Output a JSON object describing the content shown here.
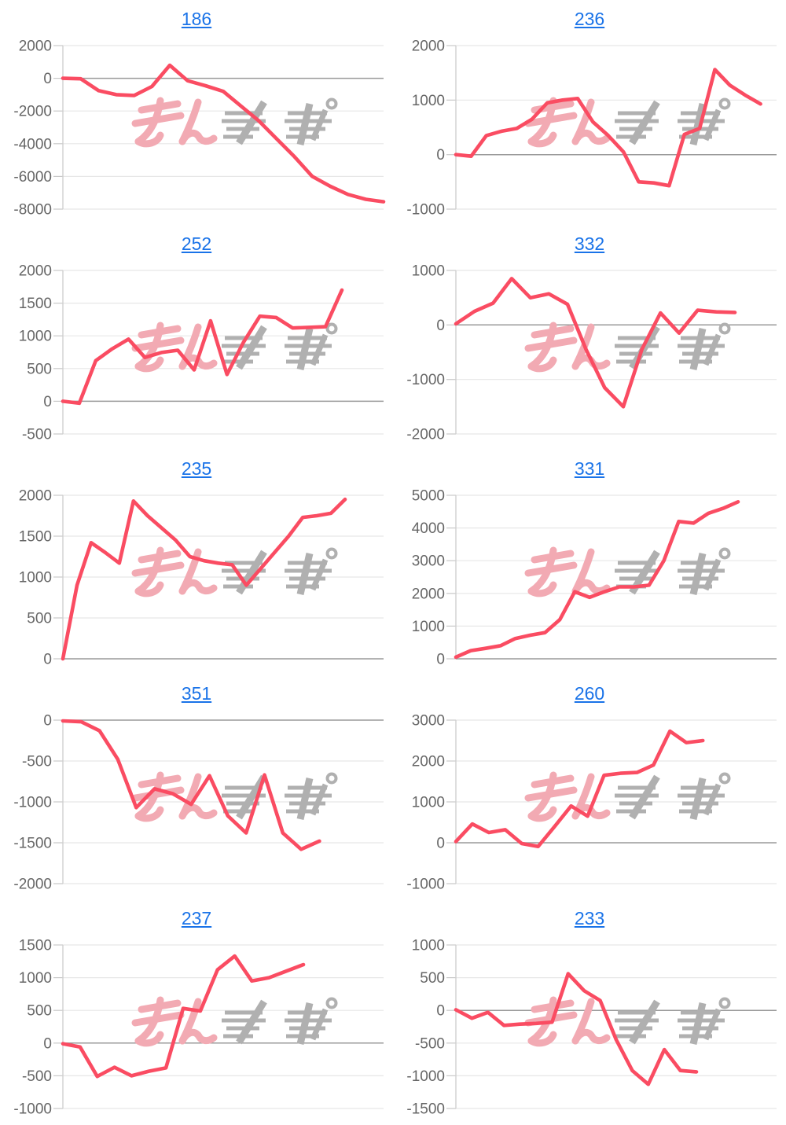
{
  "watermark": {
    "label": "みんレポ"
  },
  "style": {
    "background": "#ffffff",
    "series_color": "#fa4c62",
    "grid_color": "#e7e7e7",
    "zero_line_color": "#9a9a9a",
    "axis_color": "#cfcfcf",
    "tick_color": "#c9c9c9",
    "label_color": "#666666",
    "title_link_color": "#1a73e8",
    "watermark_pink": "#f2aab3",
    "watermark_gray": "#b0b0b0"
  },
  "chart_data": [
    {
      "type": "line",
      "title": "186",
      "y_ticks": [
        2000,
        0,
        -2000,
        -4000,
        -6000,
        -8000
      ],
      "y_max": 2000,
      "y_min": -8000,
      "end_fraction": 1.0,
      "values": [
        0,
        -30,
        -750,
        -1000,
        -1050,
        -500,
        800,
        -150,
        -450,
        -800,
        -1700,
        -2600,
        -3700,
        -4800,
        -6000,
        -6600,
        -7100,
        -7400,
        -7550
      ]
    },
    {
      "type": "line",
      "title": "236",
      "y_ticks": [
        2000,
        1000,
        0,
        -1000
      ],
      "y_max": 2000,
      "y_min": -1000,
      "end_fraction": 0.95,
      "values": [
        0,
        -30,
        350,
        430,
        480,
        650,
        950,
        1000,
        1030,
        600,
        350,
        50,
        -500,
        -520,
        -570,
        370,
        480,
        1560,
        1270,
        1090,
        930
      ]
    },
    {
      "type": "line",
      "title": "252",
      "y_ticks": [
        2000,
        1500,
        1000,
        500,
        0,
        -500
      ],
      "y_max": 2000,
      "y_min": -500,
      "end_fraction": 0.87,
      "values": [
        0,
        -30,
        620,
        800,
        950,
        670,
        745,
        780,
        480,
        1230,
        410,
        900,
        1300,
        1280,
        1120,
        1130,
        1140,
        1700
      ]
    },
    {
      "type": "line",
      "title": "332",
      "y_ticks": [
        1000,
        0,
        -1000,
        -2000
      ],
      "y_max": 1000,
      "y_min": -2000,
      "end_fraction": 0.87,
      "values": [
        20,
        250,
        400,
        850,
        500,
        570,
        380,
        -450,
        -1150,
        -1500,
        -450,
        220,
        -150,
        270,
        240,
        230
      ]
    },
    {
      "type": "line",
      "title": "235",
      "y_ticks": [
        2000,
        1500,
        1000,
        500,
        0
      ],
      "y_max": 2000,
      "y_min": 0,
      "end_fraction": 0.88,
      "values": [
        0,
        900,
        1420,
        1300,
        1170,
        1930,
        1750,
        1600,
        1450,
        1250,
        1200,
        1170,
        1150,
        900,
        1100,
        1300,
        1500,
        1730,
        1750,
        1780,
        1950
      ]
    },
    {
      "type": "line",
      "title": "331",
      "y_ticks": [
        5000,
        4000,
        3000,
        2000,
        1000,
        0
      ],
      "y_max": 5000,
      "y_min": 0,
      "end_fraction": 0.88,
      "values": [
        50,
        250,
        320,
        400,
        620,
        720,
        800,
        1200,
        2050,
        1880,
        2050,
        2200,
        2200,
        2250,
        3000,
        4200,
        4150,
        4450,
        4600,
        4800
      ]
    },
    {
      "type": "line",
      "title": "351",
      "y_ticks": [
        0,
        -500,
        -1000,
        -1500,
        -2000
      ],
      "y_max": 0,
      "y_min": -2000,
      "end_fraction": 0.8,
      "values": [
        -10,
        -20,
        -130,
        -480,
        -1070,
        -840,
        -900,
        -1030,
        -680,
        -1170,
        -1380,
        -670,
        -1380,
        -1580,
        -1480
      ]
    },
    {
      "type": "line",
      "title": "260",
      "y_ticks": [
        3000,
        2000,
        1000,
        0,
        -1000
      ],
      "y_max": 3000,
      "y_min": -1000,
      "end_fraction": 0.77,
      "values": [
        30,
        460,
        250,
        320,
        -20,
        -90,
        400,
        900,
        650,
        1650,
        1700,
        1720,
        1900,
        2730,
        2450,
        2500
      ]
    },
    {
      "type": "line",
      "title": "237",
      "y_ticks": [
        1500,
        1000,
        500,
        0,
        -500,
        -1000
      ],
      "y_max": 1500,
      "y_min": -1000,
      "end_fraction": 0.75,
      "values": [
        -10,
        -60,
        -510,
        -370,
        -500,
        -430,
        -380,
        530,
        490,
        1120,
        1330,
        950,
        1000,
        1100,
        1200
      ]
    },
    {
      "type": "line",
      "title": "233",
      "y_ticks": [
        1000,
        500,
        0,
        -500,
        -1000,
        -1500
      ],
      "y_max": 1000,
      "y_min": -1500,
      "end_fraction": 0.75,
      "values": [
        10,
        -120,
        -30,
        -230,
        -210,
        -200,
        -180,
        560,
        300,
        150,
        -450,
        -920,
        -1130,
        -600,
        -920,
        -940
      ]
    }
  ]
}
